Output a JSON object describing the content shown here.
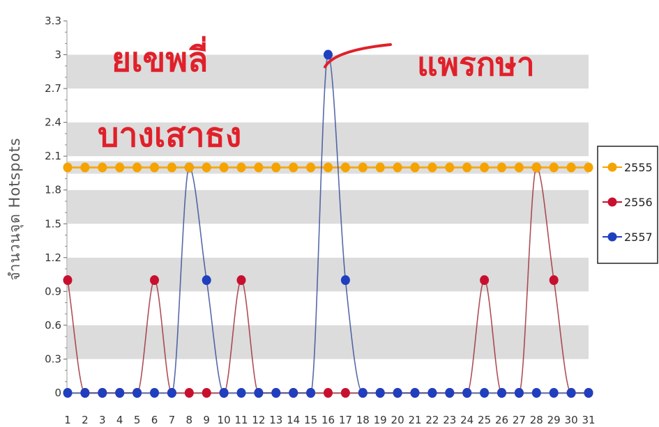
{
  "chart_data": {
    "type": "line",
    "title": "",
    "xlabel": "",
    "ylabel": "จำนวนจุด Hotspots",
    "x": [
      1,
      2,
      3,
      4,
      5,
      6,
      7,
      8,
      9,
      10,
      11,
      12,
      13,
      14,
      15,
      16,
      17,
      18,
      19,
      20,
      21,
      22,
      23,
      24,
      25,
      26,
      27,
      28,
      29,
      30,
      31
    ],
    "yticks": [
      "0",
      "0.3",
      "0.6",
      "0.9",
      "1.2",
      "1.5",
      "1.8",
      "2.1",
      "2.4",
      "2.7",
      "3",
      "3.3"
    ],
    "ylim": [
      0,
      3.3
    ],
    "grid": "alternating horizontal bands",
    "legend_position": "right",
    "series": [
      {
        "name": "2555",
        "color": "#f5a300",
        "values": [
          2,
          2,
          2,
          2,
          2,
          2,
          2,
          2,
          2,
          2,
          2,
          2,
          2,
          2,
          2,
          2,
          2,
          2,
          2,
          2,
          2,
          2,
          2,
          2,
          2,
          2,
          2,
          2,
          2,
          2,
          2
        ]
      },
      {
        "name": "2556",
        "color": "#c8102e",
        "values": [
          1,
          0,
          0,
          0,
          0,
          1,
          0,
          0,
          0,
          0,
          1,
          0,
          0,
          0,
          0,
          0,
          0,
          0,
          0,
          0,
          0,
          0,
          0,
          0,
          1,
          0,
          0,
          2,
          1,
          0,
          0
        ]
      },
      {
        "name": "2557",
        "color": "#1f3fbf",
        "values": [
          0,
          0,
          0,
          0,
          0,
          0,
          0,
          2,
          1,
          0,
          0,
          0,
          0,
          0,
          0,
          3,
          1,
          0,
          0,
          0,
          0,
          0,
          0,
          0,
          0,
          0,
          0,
          0,
          0,
          0,
          0
        ]
      }
    ],
    "annotations": [
      {
        "text": "ยเขพลี่",
        "kind": "handwritten"
      },
      {
        "text": "บางเสาธง",
        "kind": "handwritten"
      },
      {
        "text": "แพรกษา",
        "kind": "handwritten"
      }
    ]
  },
  "colors": {
    "band_dark": "#dcdcdc",
    "band_light": "#ffffff",
    "annotation": "#e0202a"
  }
}
